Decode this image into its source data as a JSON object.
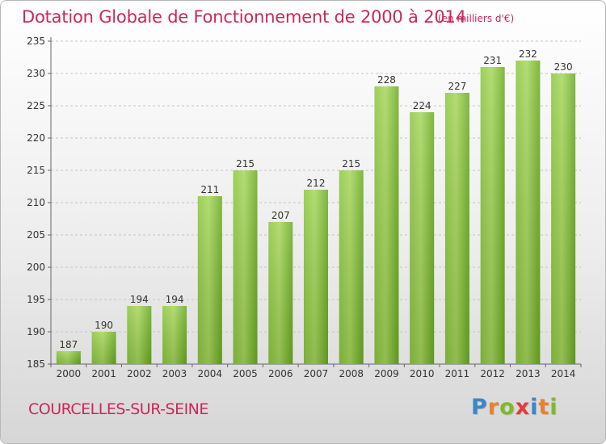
{
  "chart_data": {
    "type": "bar",
    "title": "Dotation Globale de Fonctionnement de 2000 à 2014",
    "subtitle": "(en milliers d'€)",
    "categories": [
      "2000",
      "2001",
      "2002",
      "2003",
      "2004",
      "2005",
      "2006",
      "2007",
      "2008",
      "2009",
      "2010",
      "2011",
      "2012",
      "2013",
      "2014"
    ],
    "values": [
      187,
      190,
      194,
      194,
      211,
      215,
      207,
      212,
      215,
      228,
      224,
      227,
      231,
      232,
      230
    ],
    "data_labels": [
      "187",
      "190",
      "194",
      "194",
      "211",
      "215",
      "207",
      "212",
      "215",
      "228",
      "224",
      "227",
      "231",
      "232",
      "230"
    ],
    "y_ticks": [
      "185",
      "190",
      "195",
      "200",
      "205",
      "210",
      "215",
      "220",
      "225",
      "230",
      "235"
    ],
    "ylim": [
      185,
      235
    ],
    "xlabel": "",
    "ylabel": "",
    "grid": true,
    "legend": "none",
    "bar_color": "#7cbf2e",
    "bar_color_light": "#a4d65c"
  },
  "footer": {
    "commune": "COURCELLES-SUR-SEINE"
  },
  "brand": {
    "name": "Proxiti",
    "letters": [
      "P",
      "r",
      "o",
      "x",
      "i",
      "t",
      "i"
    ],
    "colors": [
      "#3a87c8",
      "#e8822a",
      "#7fb92c",
      "#e23c3c",
      "#3a87c8",
      "#e8822a",
      "#7fb92c"
    ]
  }
}
